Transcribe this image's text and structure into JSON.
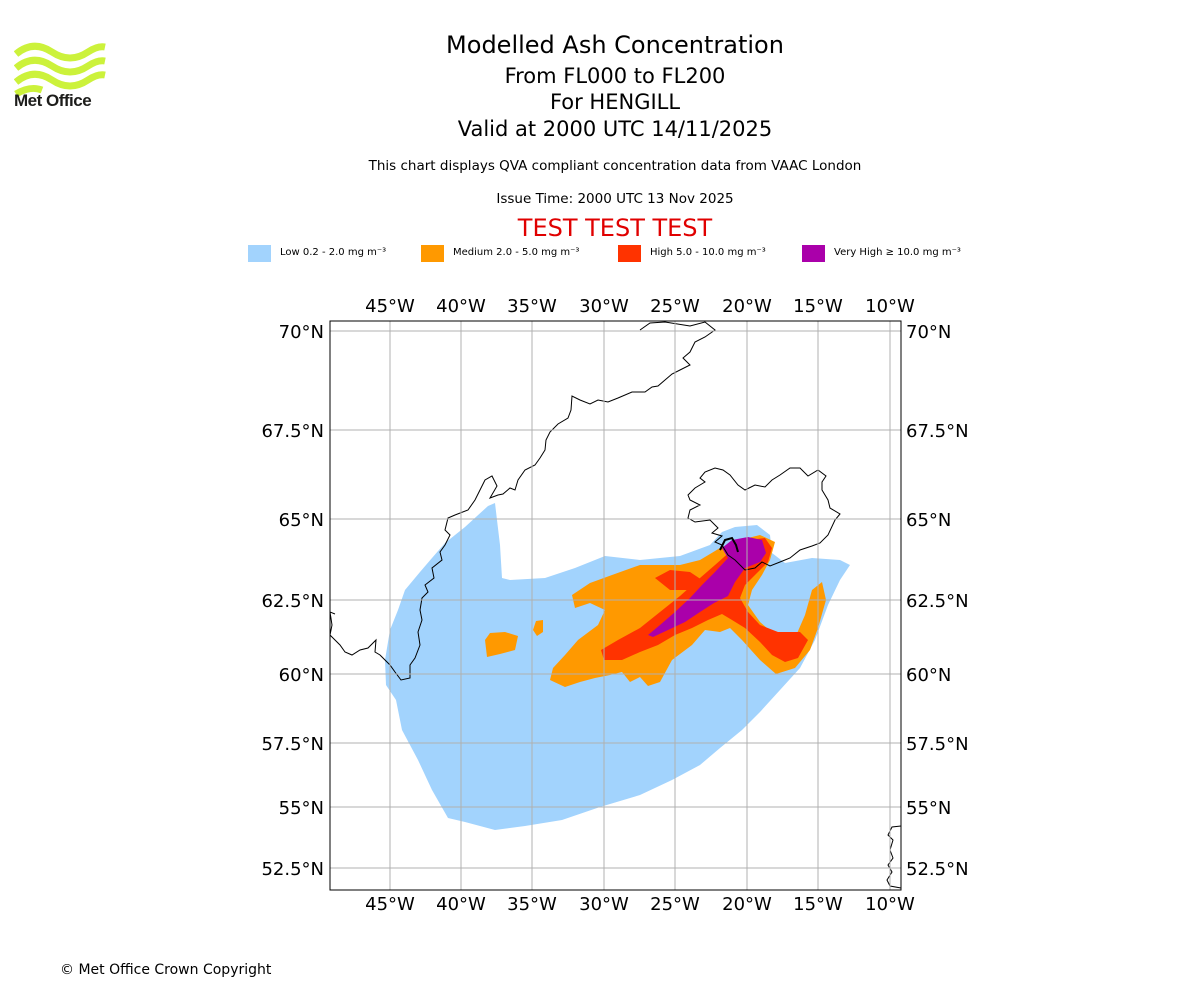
{
  "header": {
    "title": "Modelled Ash Concentration",
    "levels": "From FL000 to FL200",
    "volcano": "For HENGILL",
    "valid": "Valid at 2000 UTC 14/11/2025",
    "note": "This chart displays QVA compliant concentration data from VAAC London",
    "issue": "Issue Time: 2000 UTC 13 Nov 2025",
    "test_banner": "TEST TEST TEST"
  },
  "logo": {
    "text": "Met Office",
    "color": "#ccf23b"
  },
  "legend": [
    {
      "label": "Low 0.2 - 2.0 mg m⁻³",
      "color": "#a2d3fd"
    },
    {
      "label": "Medium 2.0 - 5.0 mg m⁻³",
      "color": "#ff9900"
    },
    {
      "label": "High 5.0 - 10.0 mg m⁻³",
      "color": "#ff3300"
    },
    {
      "label": "Very High  ≥  10.0 mg m⁻³",
      "color": "#aa00aa"
    }
  ],
  "map": {
    "lon_ticks": [
      "45°W",
      "40°W",
      "35°W",
      "30°W",
      "25°W",
      "20°W",
      "15°W",
      "10°W"
    ],
    "lat_ticks": [
      "70°N",
      "67.5°N",
      "65°N",
      "62.5°N",
      "60°N",
      "57.5°N",
      "55°N",
      "52.5°N"
    ],
    "gridline_color": "#b0b0b0"
  },
  "footer": {
    "copyright": "© Met Office Crown Copyright"
  }
}
